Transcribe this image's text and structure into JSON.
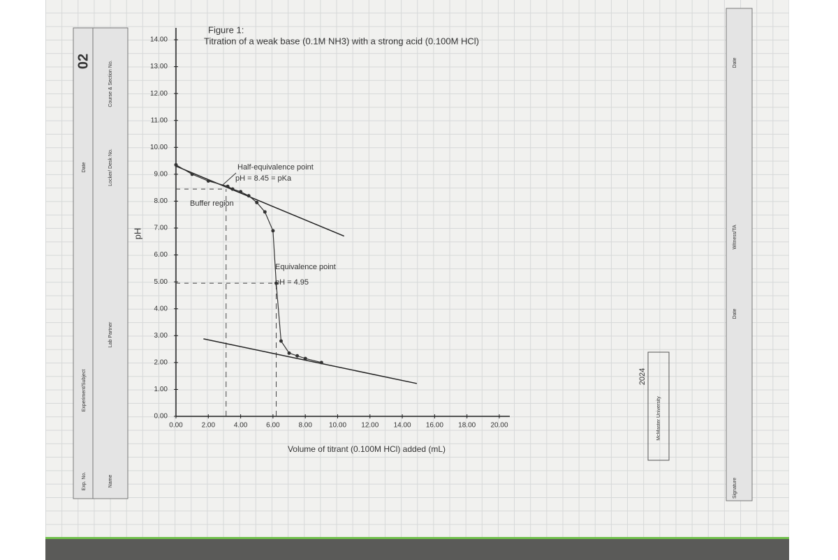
{
  "chart_data": {
    "type": "scatter",
    "title": "Figure 1:",
    "subtitle": "Titration of a weak base (0.1M NH3) with a strong acid (0.100M HCl)",
    "x_label": "Volume of titrant (0.100M HCl) added (mL)",
    "y_label": "pH",
    "x": [
      0,
      1,
      2,
      3.2,
      3.5,
      4,
      4.5,
      5,
      5.5,
      6,
      6.2,
      6.5,
      7,
      7.5,
      8,
      9
    ],
    "values": [
      9.35,
      9.0,
      8.75,
      8.55,
      8.45,
      8.35,
      8.2,
      7.95,
      7.6,
      6.9,
      4.95,
      2.8,
      2.35,
      2.25,
      2.15,
      2.0
    ],
    "color": "#333333",
    "tangent_lines": [
      {
        "x": [
          0,
          10.4
        ],
        "y": [
          9.3,
          6.7
        ]
      },
      {
        "x": [
          1.7,
          14.9
        ],
        "y": [
          2.88,
          1.22
        ]
      }
    ],
    "reference_lines": {
      "x": [
        3.1,
        6.2
      ],
      "y": [
        8.45,
        4.95
      ]
    },
    "annotations": [
      "Half-equivalence point",
      "pH = 8.45 = pKa",
      "Buffer region",
      "Equivalence point",
      "pH = 4.95"
    ],
    "xlim": [
      0,
      20
    ],
    "xticks": [
      {
        "value": 0,
        "label": "0.00"
      },
      {
        "value": 2,
        "label": "2.00"
      },
      {
        "value": 4,
        "label": "4.00"
      },
      {
        "value": 6,
        "label": "6.00"
      },
      {
        "value": 8,
        "label": "8.00"
      },
      {
        "value": 10,
        "label": "10.00"
      },
      {
        "value": 12,
        "label": "12.00"
      },
      {
        "value": 14,
        "label": "14.00"
      },
      {
        "value": 16,
        "label": "16.00"
      },
      {
        "value": 18,
        "label": "18.00"
      },
      {
        "value": 20,
        "label": "20.00"
      }
    ],
    "ylim": [
      0,
      14
    ],
    "yticks": [
      {
        "value": 0,
        "label": "0.00"
      },
      {
        "value": 1,
        "label": "1.00"
      },
      {
        "value": 2,
        "label": "2.00"
      },
      {
        "value": 3,
        "label": "3.00"
      },
      {
        "value": 4,
        "label": "4.00"
      },
      {
        "value": 5,
        "label": "5.00"
      },
      {
        "value": 6,
        "label": "6.00"
      },
      {
        "value": 7,
        "label": "7.00"
      },
      {
        "value": 8,
        "label": "8.00"
      },
      {
        "value": 9,
        "label": "9.00"
      },
      {
        "value": 10,
        "label": "10.00"
      },
      {
        "value": 11,
        "label": "11.00"
      },
      {
        "value": 12,
        "label": "12.00"
      },
      {
        "value": 13,
        "label": "13.00"
      },
      {
        "value": 14,
        "label": "14.00"
      }
    ]
  },
  "notebook": {
    "left": [
      "Exp. No.",
      "Name",
      "Experiment/Subject",
      "Lab Partner",
      "Date",
      "02",
      "Course & Section No.",
      "Locker/ Desk No."
    ],
    "right": [
      "Signature",
      "Date",
      "Witness/TA",
      "Date"
    ],
    "stamp": [
      "2024",
      "McMaster University"
    ]
  }
}
